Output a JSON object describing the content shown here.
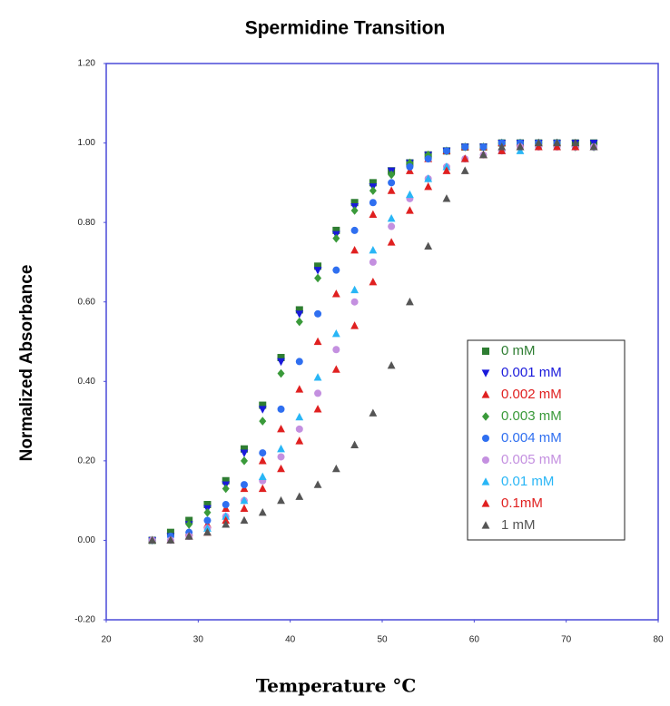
{
  "chart_data": {
    "type": "scatter",
    "title": "Spermidine Transition",
    "x_label": "Temperature °C",
    "y_label": "Normalized Absorbance",
    "xlim": [
      20,
      80
    ],
    "ylim": [
      -0.2,
      1.2
    ],
    "xticks": [
      20,
      30,
      40,
      50,
      60,
      70,
      80
    ],
    "yticks": [
      {
        "value": 1.2,
        "label": "1.20"
      },
      {
        "value": 1.0,
        "label": "1.00"
      },
      {
        "value": 0.8,
        "label": "0.80"
      },
      {
        "value": 0.6,
        "label": "0.60"
      },
      {
        "value": 0.4,
        "label": "0.40"
      },
      {
        "value": 0.2,
        "label": "0.20"
      },
      {
        "value": 0.0,
        "label": "0.00"
      },
      {
        "value": -0.2,
        "label": "-0.20"
      }
    ],
    "grid": false,
    "legend": "right",
    "x": [
      25,
      27,
      29,
      31,
      33,
      35,
      37,
      39,
      41,
      43,
      45,
      47,
      49,
      51,
      53,
      55,
      57,
      59,
      61,
      63,
      65,
      67,
      69,
      71,
      73
    ],
    "series": [
      {
        "name": "0 mM",
        "color": "#2e7d32",
        "marker": "square",
        "values": [
          0.0,
          0.02,
          0.05,
          0.09,
          0.15,
          0.23,
          0.34,
          0.46,
          0.58,
          0.69,
          0.78,
          0.85,
          0.9,
          0.93,
          0.95,
          0.97,
          0.98,
          0.99,
          0.99,
          1.0,
          1.0,
          1.0,
          1.0,
          1.0,
          1.0
        ]
      },
      {
        "name": "0.001 mM",
        "color": "#1a1adb",
        "marker": "triangle-down",
        "values": [
          0.0,
          0.01,
          0.04,
          0.08,
          0.14,
          0.22,
          0.33,
          0.45,
          0.57,
          0.68,
          0.77,
          0.84,
          0.89,
          0.93,
          0.95,
          0.97,
          0.98,
          0.99,
          0.99,
          1.0,
          1.0,
          1.0,
          1.0,
          1.0,
          1.0
        ]
      },
      {
        "name": "0.002 mM",
        "color": "#e02020",
        "marker": "triangle-up",
        "values": [
          0.0,
          0.0,
          0.02,
          0.04,
          0.08,
          0.13,
          0.2,
          0.28,
          0.38,
          0.5,
          0.62,
          0.73,
          0.82,
          0.88,
          0.93,
          0.96,
          0.98,
          0.99,
          0.99,
          1.0,
          1.0,
          1.0,
          1.0,
          0.99,
          0.99
        ]
      },
      {
        "name": "0.003 mM",
        "color": "#3a9a3a",
        "marker": "diamond",
        "values": [
          0.0,
          0.01,
          0.04,
          0.07,
          0.13,
          0.2,
          0.3,
          0.42,
          0.55,
          0.66,
          0.76,
          0.83,
          0.88,
          0.92,
          0.95,
          0.97,
          0.98,
          0.99,
          0.99,
          1.0,
          1.0,
          1.0,
          1.0,
          0.99,
          0.99
        ]
      },
      {
        "name": "0.004 mM",
        "color": "#2f6ff0",
        "marker": "circle",
        "values": [
          0.0,
          0.01,
          0.02,
          0.05,
          0.09,
          0.14,
          0.22,
          0.33,
          0.45,
          0.57,
          0.68,
          0.78,
          0.85,
          0.9,
          0.94,
          0.96,
          0.98,
          0.99,
          0.99,
          1.0,
          1.0,
          1.0,
          1.0,
          0.99,
          0.99
        ]
      },
      {
        "name": "0.005 mM",
        "color": "#c490e0",
        "marker": "circle",
        "values": [
          0.0,
          0.0,
          0.01,
          0.03,
          0.06,
          0.1,
          0.15,
          0.21,
          0.28,
          0.37,
          0.48,
          0.6,
          0.7,
          0.79,
          0.86,
          0.91,
          0.94,
          0.96,
          0.97,
          0.98,
          0.99,
          0.99,
          0.99,
          0.99,
          0.99
        ]
      },
      {
        "name": "0.01 mM",
        "color": "#29b6f6",
        "marker": "triangle-up",
        "values": [
          0.0,
          0.0,
          0.01,
          0.03,
          0.06,
          0.1,
          0.16,
          0.23,
          0.31,
          0.41,
          0.52,
          0.63,
          0.73,
          0.81,
          0.87,
          0.91,
          0.94,
          0.96,
          0.97,
          0.98,
          0.98,
          0.99,
          0.99,
          0.99,
          0.99
        ]
      },
      {
        "name": "0.1mM",
        "color": "#e02020",
        "marker": "triangle-up",
        "values": [
          0.0,
          0.0,
          0.01,
          0.02,
          0.05,
          0.08,
          0.13,
          0.18,
          0.25,
          0.33,
          0.43,
          0.54,
          0.65,
          0.75,
          0.83,
          0.89,
          0.93,
          0.96,
          0.97,
          0.98,
          0.99,
          0.99,
          0.99,
          0.99,
          0.99
        ]
      },
      {
        "name": "1 mM",
        "color": "#555555",
        "marker": "triangle-up",
        "values": [
          0.0,
          0.0,
          0.01,
          0.02,
          0.04,
          0.05,
          0.07,
          0.1,
          0.11,
          0.14,
          0.18,
          0.24,
          0.32,
          0.44,
          0.6,
          0.74,
          0.86,
          0.93,
          0.97,
          0.99,
          0.99,
          1.0,
          1.0,
          1.0,
          0.99
        ]
      }
    ]
  }
}
